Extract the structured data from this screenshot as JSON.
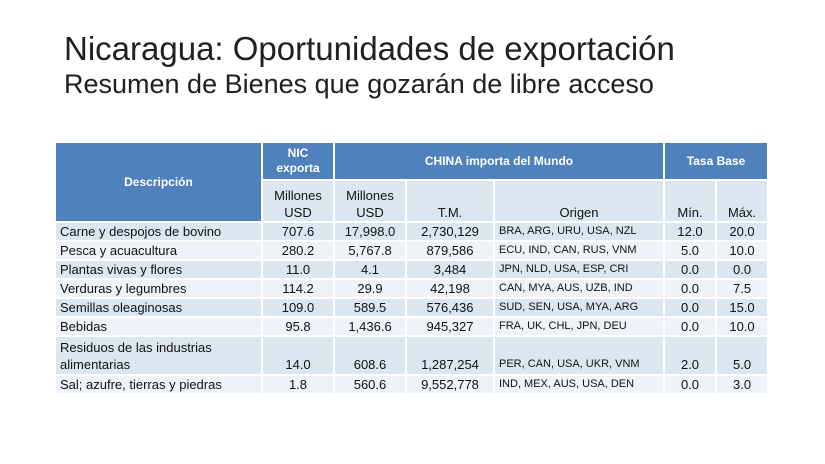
{
  "title": "Nicaragua: Oportunidades de exportación",
  "subtitle": "Resumen de Bienes que gozarán de libre acceso",
  "table": {
    "header1": {
      "descripcion": "Descripción",
      "nic": "NIC exporta",
      "china": "CHINA importa del Mundo",
      "tasa": "Tasa Base"
    },
    "header2": {
      "nic_usd": "Millones USD",
      "china_usd": "Millones USD",
      "tm": "T.M.",
      "origen": "Origen",
      "min": "Mín.",
      "max": "Máx."
    },
    "rows": [
      {
        "desc": "Carne y despojos de bovino",
        "nic": "707.6",
        "usd": "17,998.0",
        "tm": "2,730,129",
        "origen": "BRA, ARG, URU, USA, NZL",
        "min": "12.0",
        "max": "20.0"
      },
      {
        "desc": "Pesca y acuacultura",
        "nic": "280.2",
        "usd": "5,767.8",
        "tm": "879,586",
        "origen": "ECU, IND, CAN, RUS, VNM",
        "min": "5.0",
        "max": "10.0"
      },
      {
        "desc": "Plantas vivas y flores",
        "nic": "11.0",
        "usd": "4.1",
        "tm": "3,484",
        "origen": "JPN, NLD, USA, ESP, CRI",
        "min": "0.0",
        "max": "0.0"
      },
      {
        "desc": "Verduras y legumbres",
        "nic": "114.2",
        "usd": "29.9",
        "tm": "42,198",
        "origen": "CAN, MYA, AUS, UZB, IND",
        "min": "0.0",
        "max": "7.5"
      },
      {
        "desc": "Semillas oleaginosas",
        "nic": "109.0",
        "usd": "589.5",
        "tm": "576,436",
        "origen": "SUD, SEN, USA, MYA, ARG",
        "min": "0.0",
        "max": "15.0"
      },
      {
        "desc": "Bebidas",
        "nic": "95.8",
        "usd": "1,436.6",
        "tm": "945,327",
        "origen": "FRA, UK, CHL, JPN, DEU",
        "min": "0.0",
        "max": "10.0"
      },
      {
        "desc": "Residuos de las industrias alimentarias",
        "nic": "14.0",
        "usd": "608.6",
        "tm": "1,287,254",
        "origen": "PER, CAN, USA, UKR, VNM",
        "min": "2.0",
        "max": "5.0"
      },
      {
        "desc": "Sal; azufre, tierras y piedras",
        "nic": "1.8",
        "usd": "560.6",
        "tm": "9,552,778",
        "origen": "IND, MEX, AUS, USA, DEN",
        "min": "0.0",
        "max": "3.0"
      }
    ]
  }
}
